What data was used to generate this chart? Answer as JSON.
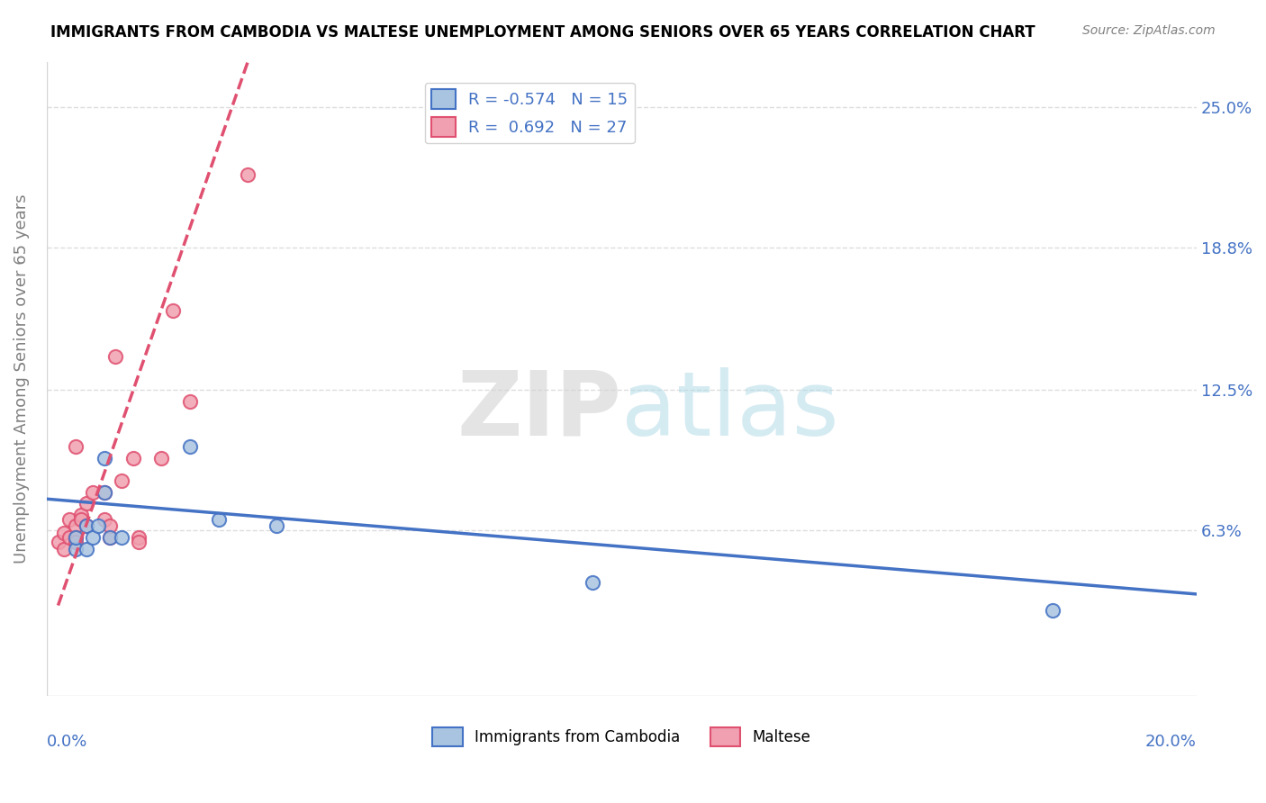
{
  "title": "IMMIGRANTS FROM CAMBODIA VS MALTESE UNEMPLOYMENT AMONG SENIORS OVER 65 YEARS CORRELATION CHART",
  "source": "Source: ZipAtlas.com",
  "xlabel_bottom_left": "0.0%",
  "xlabel_bottom_right": "20.0%",
  "ylabel": "Unemployment Among Seniors over 65 years",
  "y_tick_labels": [
    "6.3%",
    "12.5%",
    "18.8%",
    "25.0%"
  ],
  "y_tick_values": [
    0.063,
    0.125,
    0.188,
    0.25
  ],
  "xlim": [
    0.0,
    0.2
  ],
  "ylim": [
    -0.01,
    0.27
  ],
  "legend_r1": "R = -0.574",
  "legend_n1": "N = 15",
  "legend_r2": "R =  0.692",
  "legend_n2": "N = 27",
  "cambodia_color": "#a8c4e0",
  "maltese_color": "#f0a0b0",
  "cambodia_line_color": "#4472c4",
  "maltese_line_color": "#e05070",
  "cambodia_points_x": [
    0.005,
    0.005,
    0.007,
    0.007,
    0.008,
    0.009,
    0.01,
    0.01,
    0.011,
    0.013,
    0.025,
    0.03,
    0.04,
    0.095,
    0.175
  ],
  "cambodia_points_y": [
    0.055,
    0.06,
    0.055,
    0.065,
    0.06,
    0.065,
    0.08,
    0.095,
    0.06,
    0.06,
    0.1,
    0.068,
    0.065,
    0.04,
    0.028
  ],
  "maltese_points_x": [
    0.002,
    0.003,
    0.003,
    0.004,
    0.004,
    0.005,
    0.005,
    0.005,
    0.005,
    0.006,
    0.006,
    0.007,
    0.007,
    0.008,
    0.01,
    0.01,
    0.011,
    0.011,
    0.012,
    0.013,
    0.015,
    0.016,
    0.016,
    0.02,
    0.022,
    0.025,
    0.035
  ],
  "maltese_points_y": [
    0.058,
    0.062,
    0.055,
    0.068,
    0.06,
    0.065,
    0.06,
    0.058,
    0.1,
    0.07,
    0.068,
    0.065,
    0.075,
    0.08,
    0.068,
    0.08,
    0.06,
    0.065,
    0.14,
    0.085,
    0.095,
    0.06,
    0.058,
    0.095,
    0.16,
    0.12,
    0.22
  ],
  "cambodia_trend_x": [
    0.0,
    0.2
  ],
  "cambodia_trend_y": [
    0.077,
    0.035
  ],
  "maltese_trend_x": [
    0.002,
    0.035
  ],
  "maltese_trend_y": [
    0.03,
    0.27
  ],
  "background_color": "#ffffff",
  "grid_color": "#dddddd",
  "dot_size": 120,
  "dot_linewidth": 1.5
}
